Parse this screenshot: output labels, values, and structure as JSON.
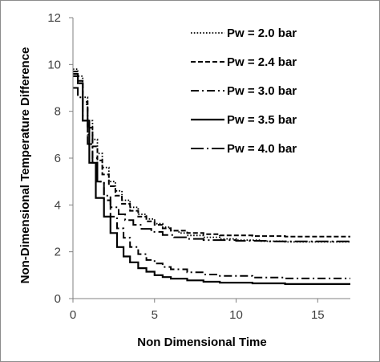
{
  "chart_data": {
    "type": "line",
    "title": "",
    "xlabel": "Non Dimensional Time",
    "ylabel": "Non-Dimensional Temperature Difference",
    "xlim": [
      0,
      17
    ],
    "ylim": [
      0,
      12
    ],
    "xticks": [
      0,
      5,
      10,
      15
    ],
    "yticks": [
      0,
      2,
      4,
      6,
      8,
      10,
      12
    ],
    "grid": false,
    "legend_placement": "top-right",
    "series": [
      {
        "name": "Pw = 2.0 bar",
        "style": "dotted",
        "color": "#000000",
        "points": [
          [
            0,
            9.8
          ],
          [
            0.3,
            9.8
          ],
          [
            0.3,
            9.5
          ],
          [
            0.6,
            9.5
          ],
          [
            0.6,
            8.6
          ],
          [
            0.9,
            8.6
          ],
          [
            0.9,
            7.6
          ],
          [
            1.2,
            7.6
          ],
          [
            1.2,
            6.8
          ],
          [
            1.5,
            6.8
          ],
          [
            1.5,
            6.2
          ],
          [
            1.8,
            6.2
          ],
          [
            1.8,
            5.6
          ],
          [
            2.2,
            5.6
          ],
          [
            2.2,
            5.0
          ],
          [
            2.6,
            5.0
          ],
          [
            2.6,
            4.6
          ],
          [
            3.0,
            4.6
          ],
          [
            3.0,
            4.2
          ],
          [
            3.5,
            4.2
          ],
          [
            3.5,
            3.9
          ],
          [
            4.0,
            3.9
          ],
          [
            4.0,
            3.6
          ],
          [
            4.5,
            3.6
          ],
          [
            4.5,
            3.4
          ],
          [
            5.0,
            3.4
          ],
          [
            5.0,
            3.2
          ],
          [
            5.5,
            3.2
          ],
          [
            5.5,
            3.05
          ],
          [
            6.0,
            3.05
          ],
          [
            6.0,
            2.9
          ],
          [
            6.5,
            2.9
          ],
          [
            6.5,
            2.8
          ],
          [
            7.0,
            2.8
          ],
          [
            7.0,
            2.7
          ],
          [
            8.0,
            2.7
          ],
          [
            8.0,
            2.62
          ],
          [
            9.0,
            2.62
          ],
          [
            9.0,
            2.55
          ],
          [
            10.0,
            2.55
          ],
          [
            10.0,
            2.5
          ],
          [
            11.5,
            2.5
          ],
          [
            11.5,
            2.45
          ],
          [
            13.0,
            2.45
          ],
          [
            13.0,
            2.42
          ],
          [
            17,
            2.42
          ]
        ]
      },
      {
        "name": "Pw = 2.4 bar",
        "style": "dashed",
        "color": "#000000",
        "points": [
          [
            0,
            9.7
          ],
          [
            0.3,
            9.7
          ],
          [
            0.3,
            9.3
          ],
          [
            0.6,
            9.3
          ],
          [
            0.6,
            8.4
          ],
          [
            0.9,
            8.4
          ],
          [
            0.9,
            7.3
          ],
          [
            1.2,
            7.3
          ],
          [
            1.2,
            6.5
          ],
          [
            1.5,
            6.5
          ],
          [
            1.5,
            5.9
          ],
          [
            1.8,
            5.9
          ],
          [
            1.8,
            5.3
          ],
          [
            2.2,
            5.3
          ],
          [
            2.2,
            4.8
          ],
          [
            2.6,
            4.8
          ],
          [
            2.6,
            4.4
          ],
          [
            3.0,
            4.4
          ],
          [
            3.0,
            4.05
          ],
          [
            3.5,
            4.05
          ],
          [
            3.5,
            3.75
          ],
          [
            4.0,
            3.75
          ],
          [
            4.0,
            3.5
          ],
          [
            4.5,
            3.5
          ],
          [
            4.5,
            3.3
          ],
          [
            5.0,
            3.3
          ],
          [
            5.0,
            3.15
          ],
          [
            5.5,
            3.15
          ],
          [
            5.5,
            3.0
          ],
          [
            6.0,
            3.0
          ],
          [
            6.0,
            2.9
          ],
          [
            7.0,
            2.9
          ],
          [
            7.0,
            2.8
          ],
          [
            8.0,
            2.8
          ],
          [
            8.0,
            2.75
          ],
          [
            9.0,
            2.75
          ],
          [
            9.0,
            2.7
          ],
          [
            11.0,
            2.7
          ],
          [
            11.0,
            2.67
          ],
          [
            13.0,
            2.67
          ],
          [
            13.0,
            2.65
          ],
          [
            17,
            2.65
          ]
        ]
      },
      {
        "name": "Pw = 3.0 bar",
        "style": "dashdot",
        "color": "#000000",
        "points": [
          [
            0,
            9.6
          ],
          [
            0.3,
            9.6
          ],
          [
            0.3,
            9.2
          ],
          [
            0.6,
            9.2
          ],
          [
            0.6,
            8.3
          ],
          [
            0.9,
            8.3
          ],
          [
            0.9,
            7.0
          ],
          [
            1.2,
            7.0
          ],
          [
            1.2,
            6.0
          ],
          [
            1.5,
            6.0
          ],
          [
            1.5,
            5.0
          ],
          [
            1.9,
            5.0
          ],
          [
            1.9,
            4.2
          ],
          [
            2.3,
            4.2
          ],
          [
            2.3,
            3.5
          ],
          [
            2.7,
            3.5
          ],
          [
            2.7,
            3.0
          ],
          [
            3.1,
            3.0
          ],
          [
            3.1,
            2.6
          ],
          [
            3.5,
            2.6
          ],
          [
            3.5,
            2.2
          ],
          [
            4.0,
            2.2
          ],
          [
            4.0,
            1.9
          ],
          [
            4.5,
            1.9
          ],
          [
            4.5,
            1.65
          ],
          [
            5.0,
            1.65
          ],
          [
            5.0,
            1.5
          ],
          [
            5.5,
            1.5
          ],
          [
            5.5,
            1.35
          ],
          [
            6.0,
            1.35
          ],
          [
            6.0,
            1.25
          ],
          [
            7.0,
            1.25
          ],
          [
            7.0,
            1.12
          ],
          [
            8.0,
            1.12
          ],
          [
            8.0,
            1.03
          ],
          [
            9.0,
            1.03
          ],
          [
            9.0,
            0.97
          ],
          [
            11.0,
            0.97
          ],
          [
            11.0,
            0.9
          ],
          [
            13.0,
            0.9
          ],
          [
            13.0,
            0.86
          ],
          [
            17,
            0.86
          ]
        ]
      },
      {
        "name": "Pw = 3.5 bar",
        "style": "solid",
        "color": "#000000",
        "points": [
          [
            0,
            9.5
          ],
          [
            0.3,
            9.5
          ],
          [
            0.3,
            9.2
          ],
          [
            0.6,
            9.2
          ],
          [
            0.6,
            7.6
          ],
          [
            1.0,
            7.6
          ],
          [
            1.0,
            5.8
          ],
          [
            1.4,
            5.8
          ],
          [
            1.4,
            4.3
          ],
          [
            1.9,
            4.3
          ],
          [
            1.9,
            3.5
          ],
          [
            2.3,
            3.5
          ],
          [
            2.3,
            2.8
          ],
          [
            2.7,
            2.8
          ],
          [
            2.7,
            2.2
          ],
          [
            3.1,
            2.2
          ],
          [
            3.1,
            1.8
          ],
          [
            3.5,
            1.8
          ],
          [
            3.5,
            1.55
          ],
          [
            4.0,
            1.55
          ],
          [
            4.0,
            1.3
          ],
          [
            4.5,
            1.3
          ],
          [
            4.5,
            1.15
          ],
          [
            5.0,
            1.15
          ],
          [
            5.0,
            1.0
          ],
          [
            5.5,
            1.0
          ],
          [
            5.5,
            0.92
          ],
          [
            6.0,
            0.92
          ],
          [
            6.0,
            0.85
          ],
          [
            7.0,
            0.85
          ],
          [
            7.0,
            0.78
          ],
          [
            8.0,
            0.78
          ],
          [
            8.0,
            0.72
          ],
          [
            9.0,
            0.72
          ],
          [
            9.0,
            0.68
          ],
          [
            11.0,
            0.68
          ],
          [
            11.0,
            0.65
          ],
          [
            13.0,
            0.65
          ],
          [
            13.0,
            0.62
          ],
          [
            17,
            0.62
          ]
        ]
      },
      {
        "name": "Pw = 4.0 bar",
        "style": "longdashdot",
        "color": "#000000",
        "points": [
          [
            0,
            9.0
          ],
          [
            0.3,
            9.0
          ],
          [
            0.3,
            8.6
          ],
          [
            0.6,
            8.6
          ],
          [
            0.6,
            7.6
          ],
          [
            0.9,
            7.6
          ],
          [
            0.9,
            6.6
          ],
          [
            1.2,
            6.6
          ],
          [
            1.2,
            5.8
          ],
          [
            1.5,
            5.8
          ],
          [
            1.5,
            5.0
          ],
          [
            1.9,
            5.0
          ],
          [
            1.9,
            4.4
          ],
          [
            2.3,
            4.4
          ],
          [
            2.3,
            3.9
          ],
          [
            2.8,
            3.9
          ],
          [
            2.8,
            3.6
          ],
          [
            3.2,
            3.6
          ],
          [
            3.2,
            3.35
          ],
          [
            3.7,
            3.35
          ],
          [
            3.7,
            3.15
          ],
          [
            4.2,
            3.15
          ],
          [
            4.2,
            2.98
          ],
          [
            4.8,
            2.98
          ],
          [
            4.8,
            2.85
          ],
          [
            5.5,
            2.85
          ],
          [
            5.5,
            2.72
          ],
          [
            6.2,
            2.72
          ],
          [
            6.2,
            2.62
          ],
          [
            7.0,
            2.62
          ],
          [
            7.0,
            2.55
          ],
          [
            8.0,
            2.55
          ],
          [
            8.0,
            2.5
          ],
          [
            10.0,
            2.5
          ],
          [
            10.0,
            2.47
          ],
          [
            12.0,
            2.47
          ],
          [
            12.0,
            2.44
          ],
          [
            17,
            2.44
          ]
        ]
      }
    ]
  }
}
